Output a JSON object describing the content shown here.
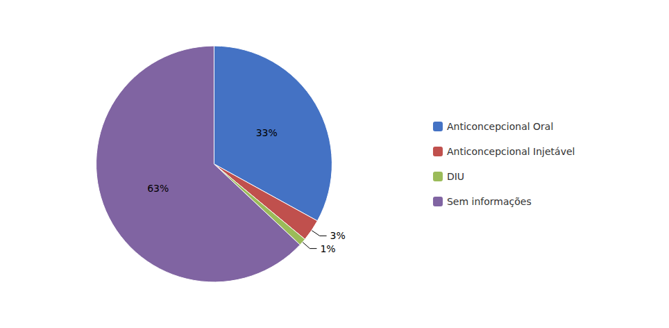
{
  "chart_data": {
    "type": "pie",
    "categories": [
      "Anticoncepcional Oral",
      "Anticoncepcional Injetável",
      "DIU",
      "Sem informações"
    ],
    "values": [
      33,
      3,
      1,
      63
    ],
    "value_labels": [
      "33%",
      "3%",
      "1%",
      "63%"
    ],
    "colors": [
      "#4472C4",
      "#C0504D",
      "#9BBB59",
      "#8064A2"
    ],
    "data_labels": true,
    "legend": "right"
  }
}
